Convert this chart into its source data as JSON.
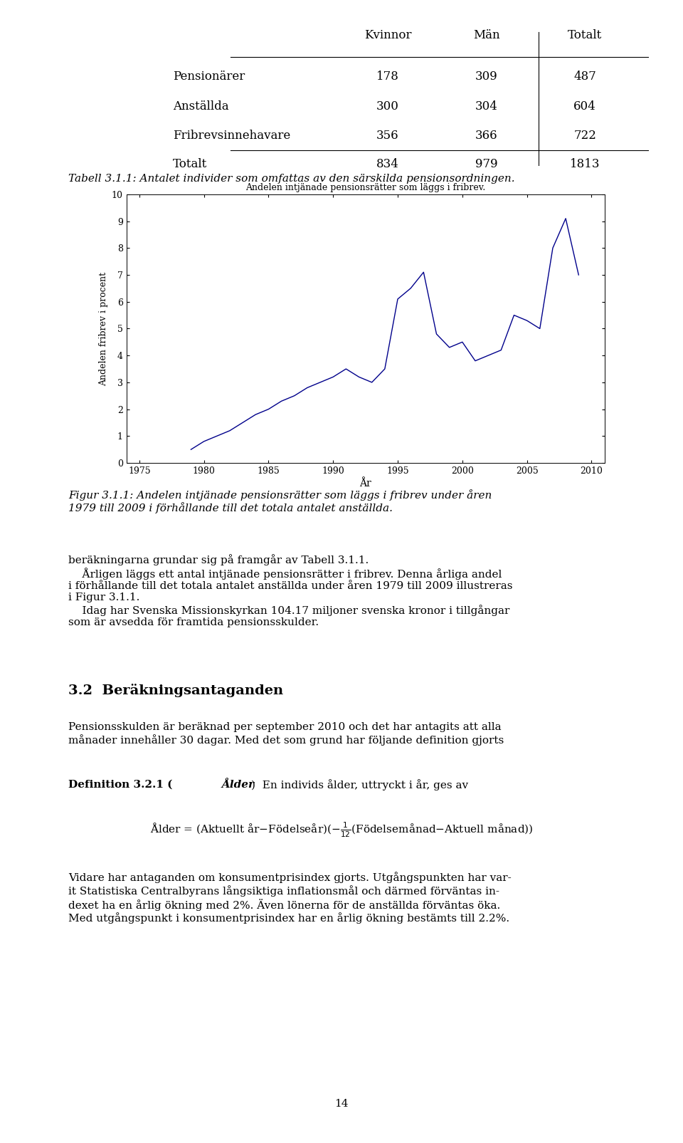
{
  "table_title_text": [
    "",
    "Kvinnor",
    "Män",
    "Totalt"
  ],
  "table_rows": [
    [
      "Pensionärer",
      "178",
      "309",
      "487"
    ],
    [
      "Anställda",
      "300",
      "304",
      "604"
    ],
    [
      "Fribrevsinnehavare",
      "356",
      "366",
      "722"
    ],
    [
      "Totalt",
      "834",
      "979",
      "1813"
    ]
  ],
  "table_caption": "Tabell 3.1.1: Antalet individer som omfattas av den särskilda pensionsordningen.",
  "chart_title": "Andelen intjänade pensionsrätter som läggs i fribrev.",
  "xlabel": "År",
  "ylabel": "Andelen fribrev i procent",
  "ylim": [
    0,
    10
  ],
  "yticks": [
    0,
    1,
    2,
    3,
    4,
    5,
    6,
    7,
    8,
    9,
    10
  ],
  "xlim": [
    1974,
    2011
  ],
  "xticks": [
    1975,
    1980,
    1985,
    1990,
    1995,
    2000,
    2005,
    2010
  ],
  "years": [
    1979,
    1980,
    1981,
    1982,
    1983,
    1984,
    1985,
    1986,
    1987,
    1988,
    1989,
    1990,
    1991,
    1992,
    1993,
    1994,
    1995,
    1996,
    1997,
    1998,
    1999,
    2000,
    2001,
    2002,
    2003,
    2004,
    2005,
    2006,
    2007,
    2008,
    2009
  ],
  "values": [
    0.5,
    0.8,
    1.0,
    1.2,
    1.5,
    1.8,
    2.0,
    2.3,
    2.5,
    2.8,
    3.0,
    3.2,
    3.5,
    3.2,
    3.0,
    3.5,
    6.1,
    6.5,
    7.1,
    4.8,
    4.3,
    4.5,
    3.8,
    4.0,
    4.2,
    5.5,
    5.3,
    5.0,
    8.0,
    9.1,
    7.0
  ],
  "line_color": "#00008B",
  "line_width": 1.0,
  "bg_color": "#ffffff"
}
